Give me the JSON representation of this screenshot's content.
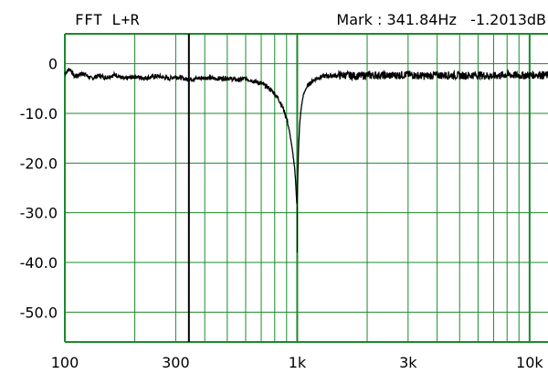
{
  "chart_data": {
    "type": "line",
    "title": "FFT L+R",
    "marker_readout": "Mark : 341.84Hz   -1.2013dB",
    "x_scale": "log",
    "xlim": [
      100,
      12000
    ],
    "ylim": [
      -56,
      6
    ],
    "grid": true,
    "grid_color": "#1b8a2c",
    "line_color": "#000000",
    "marker_color": "#000000",
    "x_ticks": [
      {
        "value": 100,
        "label": "100"
      },
      {
        "value": 300,
        "label": "300"
      },
      {
        "value": 1000,
        "label": "1k"
      },
      {
        "value": 3000,
        "label": "3k"
      },
      {
        "value": 10000,
        "label": "10k"
      }
    ],
    "y_ticks": [
      {
        "value": 0,
        "label": "0"
      },
      {
        "value": -10,
        "label": "-10.0"
      },
      {
        "value": -20,
        "label": "-20.0"
      },
      {
        "value": -30,
        "label": "-30.0"
      },
      {
        "value": -40,
        "label": "-40.0"
      },
      {
        "value": -50,
        "label": "-50.0"
      }
    ],
    "marker": {
      "x": 341.84,
      "y": -1.2013
    },
    "series": [
      {
        "x": [
          100,
          105,
          110,
          120,
          130,
          140,
          150,
          165,
          180,
          200,
          220,
          250,
          280,
          300,
          340,
          400,
          450,
          500,
          560,
          600,
          650,
          700,
          750,
          800,
          840,
          870,
          900,
          920,
          940,
          960,
          975,
          985,
          993,
          998,
          1000,
          1003,
          1008,
          1015,
          1025,
          1040,
          1060,
          1090,
          1130,
          1200,
          1300,
          1450,
          1600,
          1800,
          2000,
          2500,
          3000,
          3500,
          4000,
          5000,
          6000,
          7000,
          8000,
          9000,
          10000,
          11000,
          12000
        ],
        "y": [
          -2.0,
          -1.0,
          -2.6,
          -1.9,
          -3.0,
          -2.4,
          -2.8,
          -2.2,
          -3.1,
          -2.6,
          -2.9,
          -2.5,
          -3.0,
          -2.6,
          -3.2,
          -2.8,
          -3.0,
          -2.9,
          -3.3,
          -3.0,
          -3.5,
          -4.0,
          -4.8,
          -6.0,
          -7.5,
          -9.0,
          -11.0,
          -13.0,
          -15.5,
          -18.5,
          -21.0,
          -24.0,
          -27.0,
          -28.5,
          -28.0,
          -25.0,
          -21.0,
          -16.0,
          -12.0,
          -9.0,
          -6.5,
          -5.0,
          -4.0,
          -3.0,
          -2.5,
          -2.4,
          -2.3,
          -2.5,
          -2.3,
          -2.4,
          -2.2,
          -2.5,
          -2.3,
          -2.4,
          -2.3,
          -2.5,
          -2.2,
          -2.4,
          -2.3,
          -2.2,
          -2.4
        ]
      }
    ]
  }
}
